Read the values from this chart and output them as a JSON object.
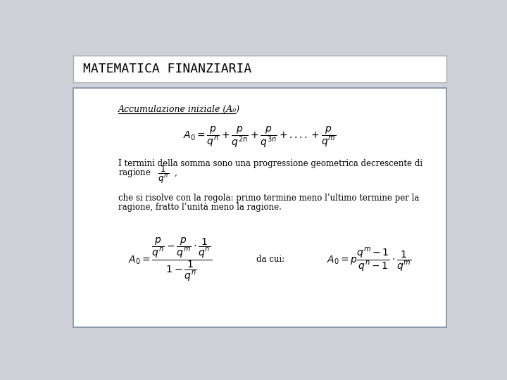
{
  "title": "MATEMATICA FINANZIARIA",
  "background_outer": "#d0d0d8",
  "background_title_box": "#ffffff",
  "background_content_box": "#ffffff",
  "title_border_color": "#aaaaaa",
  "content_border_color": "#7a8fa0",
  "title_color": "#000000",
  "text_color": "#000000",
  "subtitle_text": "Accumulazione iniziale (A₀)",
  "formula1": "$A_0 = \\dfrac{p}{q^{n}} + \\dfrac{p}{q^{2n}} + \\dfrac{p}{q^{3n}} + ....+ \\dfrac{p}{q^{m}}$",
  "text1a": "I termini della somma sono una progressione geometrica decrescente di",
  "text1b": "ragione",
  "formula_ratio": "$\\dfrac{1}{q^{n}}$  ,",
  "text2a": "che si risolve con la regola: primo termine meno l’ultimo termine per la",
  "text2b": "ragione, fratto l’unità meno la ragione.",
  "formula2_lhs": "$A_0 = \\dfrac{\\dfrac{p}{q^{n}} - \\dfrac{p}{q^{m}} \\cdot \\dfrac{1}{q^{n}}}{1 - \\dfrac{1}{q^{n}}}$",
  "formula2_mid": "da cui:",
  "formula2_rhs": "$A_0 = p\\dfrac{q^{m}-1}{q^{n}-1} \\cdot \\dfrac{1}{q^{m}}$"
}
